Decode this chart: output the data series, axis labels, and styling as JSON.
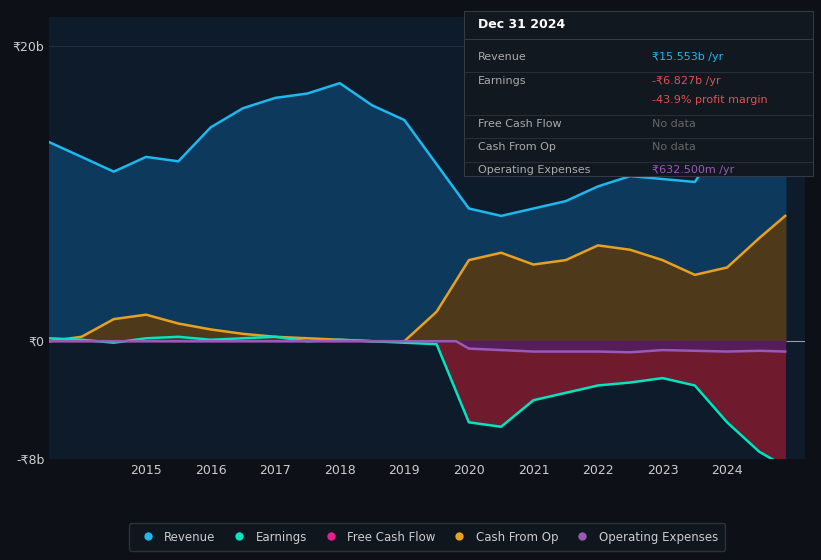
{
  "background_color": "#0d1117",
  "plot_bg_color": "#0d1b2a",
  "y_label_top": "₹20b",
  "y_label_zero": "₹0",
  "y_label_bottom": "-₹8b",
  "ylim": [
    -8,
    22
  ],
  "xlim": [
    2013.5,
    2025.2
  ],
  "x_ticks": [
    2015,
    2016,
    2017,
    2018,
    2019,
    2020,
    2021,
    2022,
    2023,
    2024
  ],
  "revenue_color": "#1eb8f0",
  "revenue_fill_color": "#0d3a5c",
  "earnings_color": "#00e5c0",
  "earnings_fill_color": "#7b1a2e",
  "cashfromop_color": "#e8a020",
  "cashfromop_fill_color": "#5a3a10",
  "opex_color": "#9b59b6",
  "opex_fill_color": "#4a2070",
  "freecashflow_color": "#e91e8c",
  "info_box_bg": "#111820",
  "info_box_border": "#333a44",
  "legend_bg": "#111820",
  "legend_border": "#333a44",
  "revenue": {
    "years": [
      2013.5,
      2014,
      2014.5,
      2015,
      2015.5,
      2016,
      2016.5,
      2017,
      2017.5,
      2018,
      2018.5,
      2019,
      2019.5,
      2020,
      2020.5,
      2021,
      2021.5,
      2022,
      2022.5,
      2023,
      2023.5,
      2024,
      2024.5,
      2024.9
    ],
    "values": [
      13.5,
      12.5,
      11.5,
      12.5,
      12.2,
      14.5,
      15.8,
      16.5,
      16.8,
      17.5,
      16.0,
      15.0,
      12.0,
      9.0,
      8.5,
      9.0,
      9.5,
      10.5,
      11.2,
      11.0,
      10.8,
      14.0,
      18.0,
      20.0
    ]
  },
  "earnings": {
    "years": [
      2013.5,
      2014,
      2014.5,
      2015,
      2015.5,
      2016,
      2016.5,
      2017,
      2017.5,
      2018,
      2018.5,
      2019,
      2019.5,
      2020,
      2020.5,
      2021,
      2021.5,
      2022,
      2022.5,
      2023,
      2023.5,
      2024,
      2024.5,
      2024.9
    ],
    "values": [
      0.2,
      0.1,
      -0.1,
      0.2,
      0.3,
      0.1,
      0.2,
      0.3,
      0.0,
      0.1,
      0.0,
      -0.1,
      -0.2,
      -5.5,
      -5.8,
      -4.0,
      -3.5,
      -3.0,
      -2.8,
      -2.5,
      -3.0,
      -5.5,
      -7.5,
      -8.5
    ]
  },
  "cashfromop": {
    "years": [
      2013.5,
      2014,
      2014.5,
      2015,
      2015.5,
      2016,
      2016.5,
      2017,
      2017.5,
      2018,
      2018.5,
      2019,
      2019.5,
      2020,
      2020.5,
      2021,
      2021.5,
      2022,
      2022.5,
      2023,
      2023.5,
      2024,
      2024.5,
      2024.9
    ],
    "values": [
      0.0,
      0.3,
      1.5,
      1.8,
      1.2,
      0.8,
      0.5,
      0.3,
      0.2,
      0.1,
      0.0,
      0.0,
      2.0,
      5.5,
      6.0,
      5.2,
      5.5,
      6.5,
      6.2,
      5.5,
      4.5,
      5.0,
      7.0,
      8.5
    ]
  },
  "opex": {
    "years": [
      2013.5,
      2019.8,
      2020,
      2020.5,
      2021,
      2021.5,
      2022,
      2022.5,
      2023,
      2023.5,
      2024,
      2024.5,
      2024.9
    ],
    "values": [
      0.0,
      0.0,
      -0.5,
      -0.6,
      -0.7,
      -0.7,
      -0.7,
      -0.75,
      -0.6,
      -0.65,
      -0.7,
      -0.65,
      -0.7
    ]
  },
  "info_title": "Dec 31 2024",
  "info_rows": [
    {
      "label": "Revenue",
      "value": "₹15.553b /yr",
      "value_color": "#1eb8f0"
    },
    {
      "label": "Earnings",
      "value": "-₹6.827b /yr",
      "value_color": "#e05050"
    },
    {
      "label": "",
      "value": "-43.9% profit margin",
      "value_color": "#e05050"
    },
    {
      "label": "Free Cash Flow",
      "value": "No data",
      "value_color": "#666666"
    },
    {
      "label": "Cash From Op",
      "value": "No data",
      "value_color": "#666666"
    },
    {
      "label": "Operating Expenses",
      "value": "₹632.500m /yr",
      "value_color": "#9b59b6"
    }
  ],
  "legend_items": [
    {
      "label": "Revenue",
      "color": "#1eb8f0"
    },
    {
      "label": "Earnings",
      "color": "#00e5c0"
    },
    {
      "label": "Free Cash Flow",
      "color": "#e91e8c"
    },
    {
      "label": "Cash From Op",
      "color": "#e8a020"
    },
    {
      "label": "Operating Expenses",
      "color": "#9b59b6"
    }
  ]
}
